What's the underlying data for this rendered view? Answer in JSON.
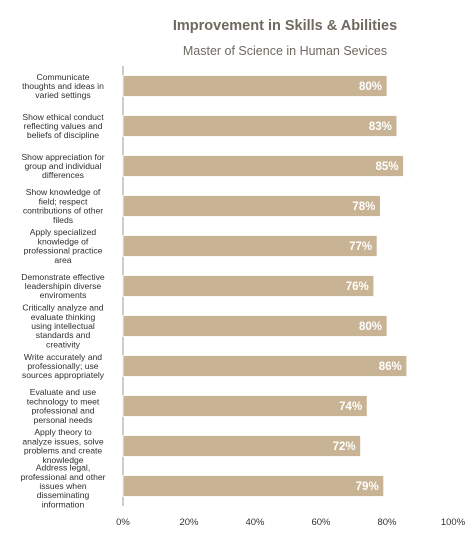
{
  "chart_data": {
    "type": "bar",
    "orientation": "horizontal",
    "title": "Improvement in Skills & Abilities",
    "subtitle": "Master of Science in Human Sevices",
    "categories": [
      [
        "Communicate",
        "thoughts and ideas in",
        "varied settings"
      ],
      [
        "Show ethical conduct",
        "reflecting values and",
        "beliefs of discipline"
      ],
      [
        "Show appreciation for",
        "group and individual",
        "differences"
      ],
      [
        "Show knowledge of",
        "field; respect",
        "contributions of other",
        "fileds"
      ],
      [
        "Apply specialized",
        "knowledge of",
        "professional practice",
        "area"
      ],
      [
        "Demonstrate effective",
        "leadershipin diverse",
        "enviroments"
      ],
      [
        "Critically analyze and",
        "evaluate thinking",
        "using intellectual",
        "standards and",
        "creativity"
      ],
      [
        "Write accurately and",
        "professionally; use",
        "sources appropriately"
      ],
      [
        "Evaluate and use",
        "technology to meet",
        "professional and",
        "personal needs"
      ],
      [
        "Apply theory to",
        "analyze issues, solve",
        "problems and create",
        "knowledge"
      ],
      [
        "Address legal,",
        "professional and other",
        "issues when",
        "disseminating",
        "information"
      ]
    ],
    "values": [
      80,
      83,
      85,
      78,
      77,
      76,
      80,
      86,
      74,
      72,
      79
    ],
    "value_labels": [
      "80%",
      "83%",
      "85%",
      "78%",
      "77%",
      "76%",
      "80%",
      "86%",
      "74%",
      "72%",
      "79%"
    ],
    "x_ticks": [
      "0%",
      "20%",
      "40%",
      "60%",
      "80%",
      "100%"
    ],
    "xlim": [
      0,
      100
    ],
    "grid": false,
    "legend": "none",
    "colors": {
      "bar": "#c8b394",
      "value_label": "#ffffff",
      "title": "#6f6a5f"
    }
  }
}
